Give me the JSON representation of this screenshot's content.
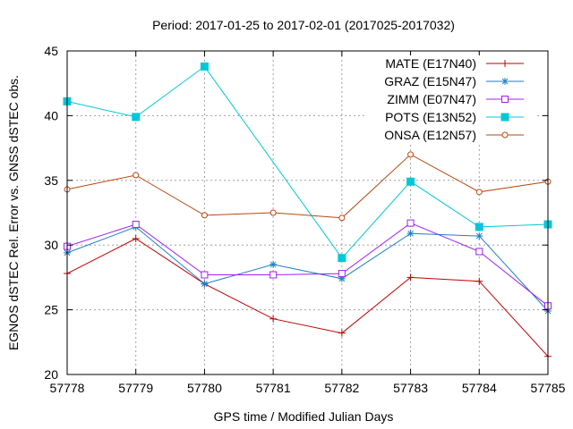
{
  "chart_data": {
    "type": "line",
    "title": "Period: 2017-01-25 to 2017-02-01 (2017025-2017032)",
    "xlabel": "GPS time / Modified Julian Days",
    "ylabel": "EGNOS dSTEC Rel. Error vs. GNSS dSTEC obs.",
    "xlim": [
      57778,
      57785
    ],
    "ylim": [
      20,
      45
    ],
    "x_ticks": [
      "57778",
      "57779",
      "57780",
      "57781",
      "57782",
      "57783",
      "57784",
      "57785"
    ],
    "y_ticks": [
      "20",
      "25",
      "30",
      "35",
      "40",
      "45"
    ],
    "grid": true,
    "legend_position": "top-right",
    "x": [
      57778,
      57779,
      57780,
      57781,
      57782,
      57783,
      57784,
      57785
    ],
    "series": [
      {
        "name": "MATE (E17N40)",
        "color": "#c00000",
        "marker": "plus",
        "values": [
          27.8,
          30.5,
          27.0,
          24.3,
          23.2,
          27.5,
          27.2,
          21.4
        ]
      },
      {
        "name": "GRAZ (E15N47)",
        "color": "#1e7fc4",
        "marker": "star",
        "values": [
          29.4,
          31.4,
          27.0,
          28.5,
          27.4,
          30.9,
          30.7,
          24.9
        ]
      },
      {
        "name": "ZIMM (E07N47)",
        "color": "#a020f0",
        "marker": "square-open",
        "values": [
          29.9,
          31.6,
          27.7,
          27.7,
          27.8,
          31.7,
          29.5,
          25.3
        ]
      },
      {
        "name": "POTS (E13N52)",
        "color": "#00c8d8",
        "marker": "square-filled",
        "values": [
          41.1,
          39.9,
          43.8,
          null,
          29.0,
          34.9,
          31.4,
          31.6
        ]
      },
      {
        "name": "ONSA (E12N57)",
        "color": "#b8470f",
        "marker": "circle-open",
        "values": [
          34.3,
          35.4,
          32.3,
          32.5,
          32.1,
          37.0,
          34.1,
          34.9
        ]
      }
    ]
  }
}
